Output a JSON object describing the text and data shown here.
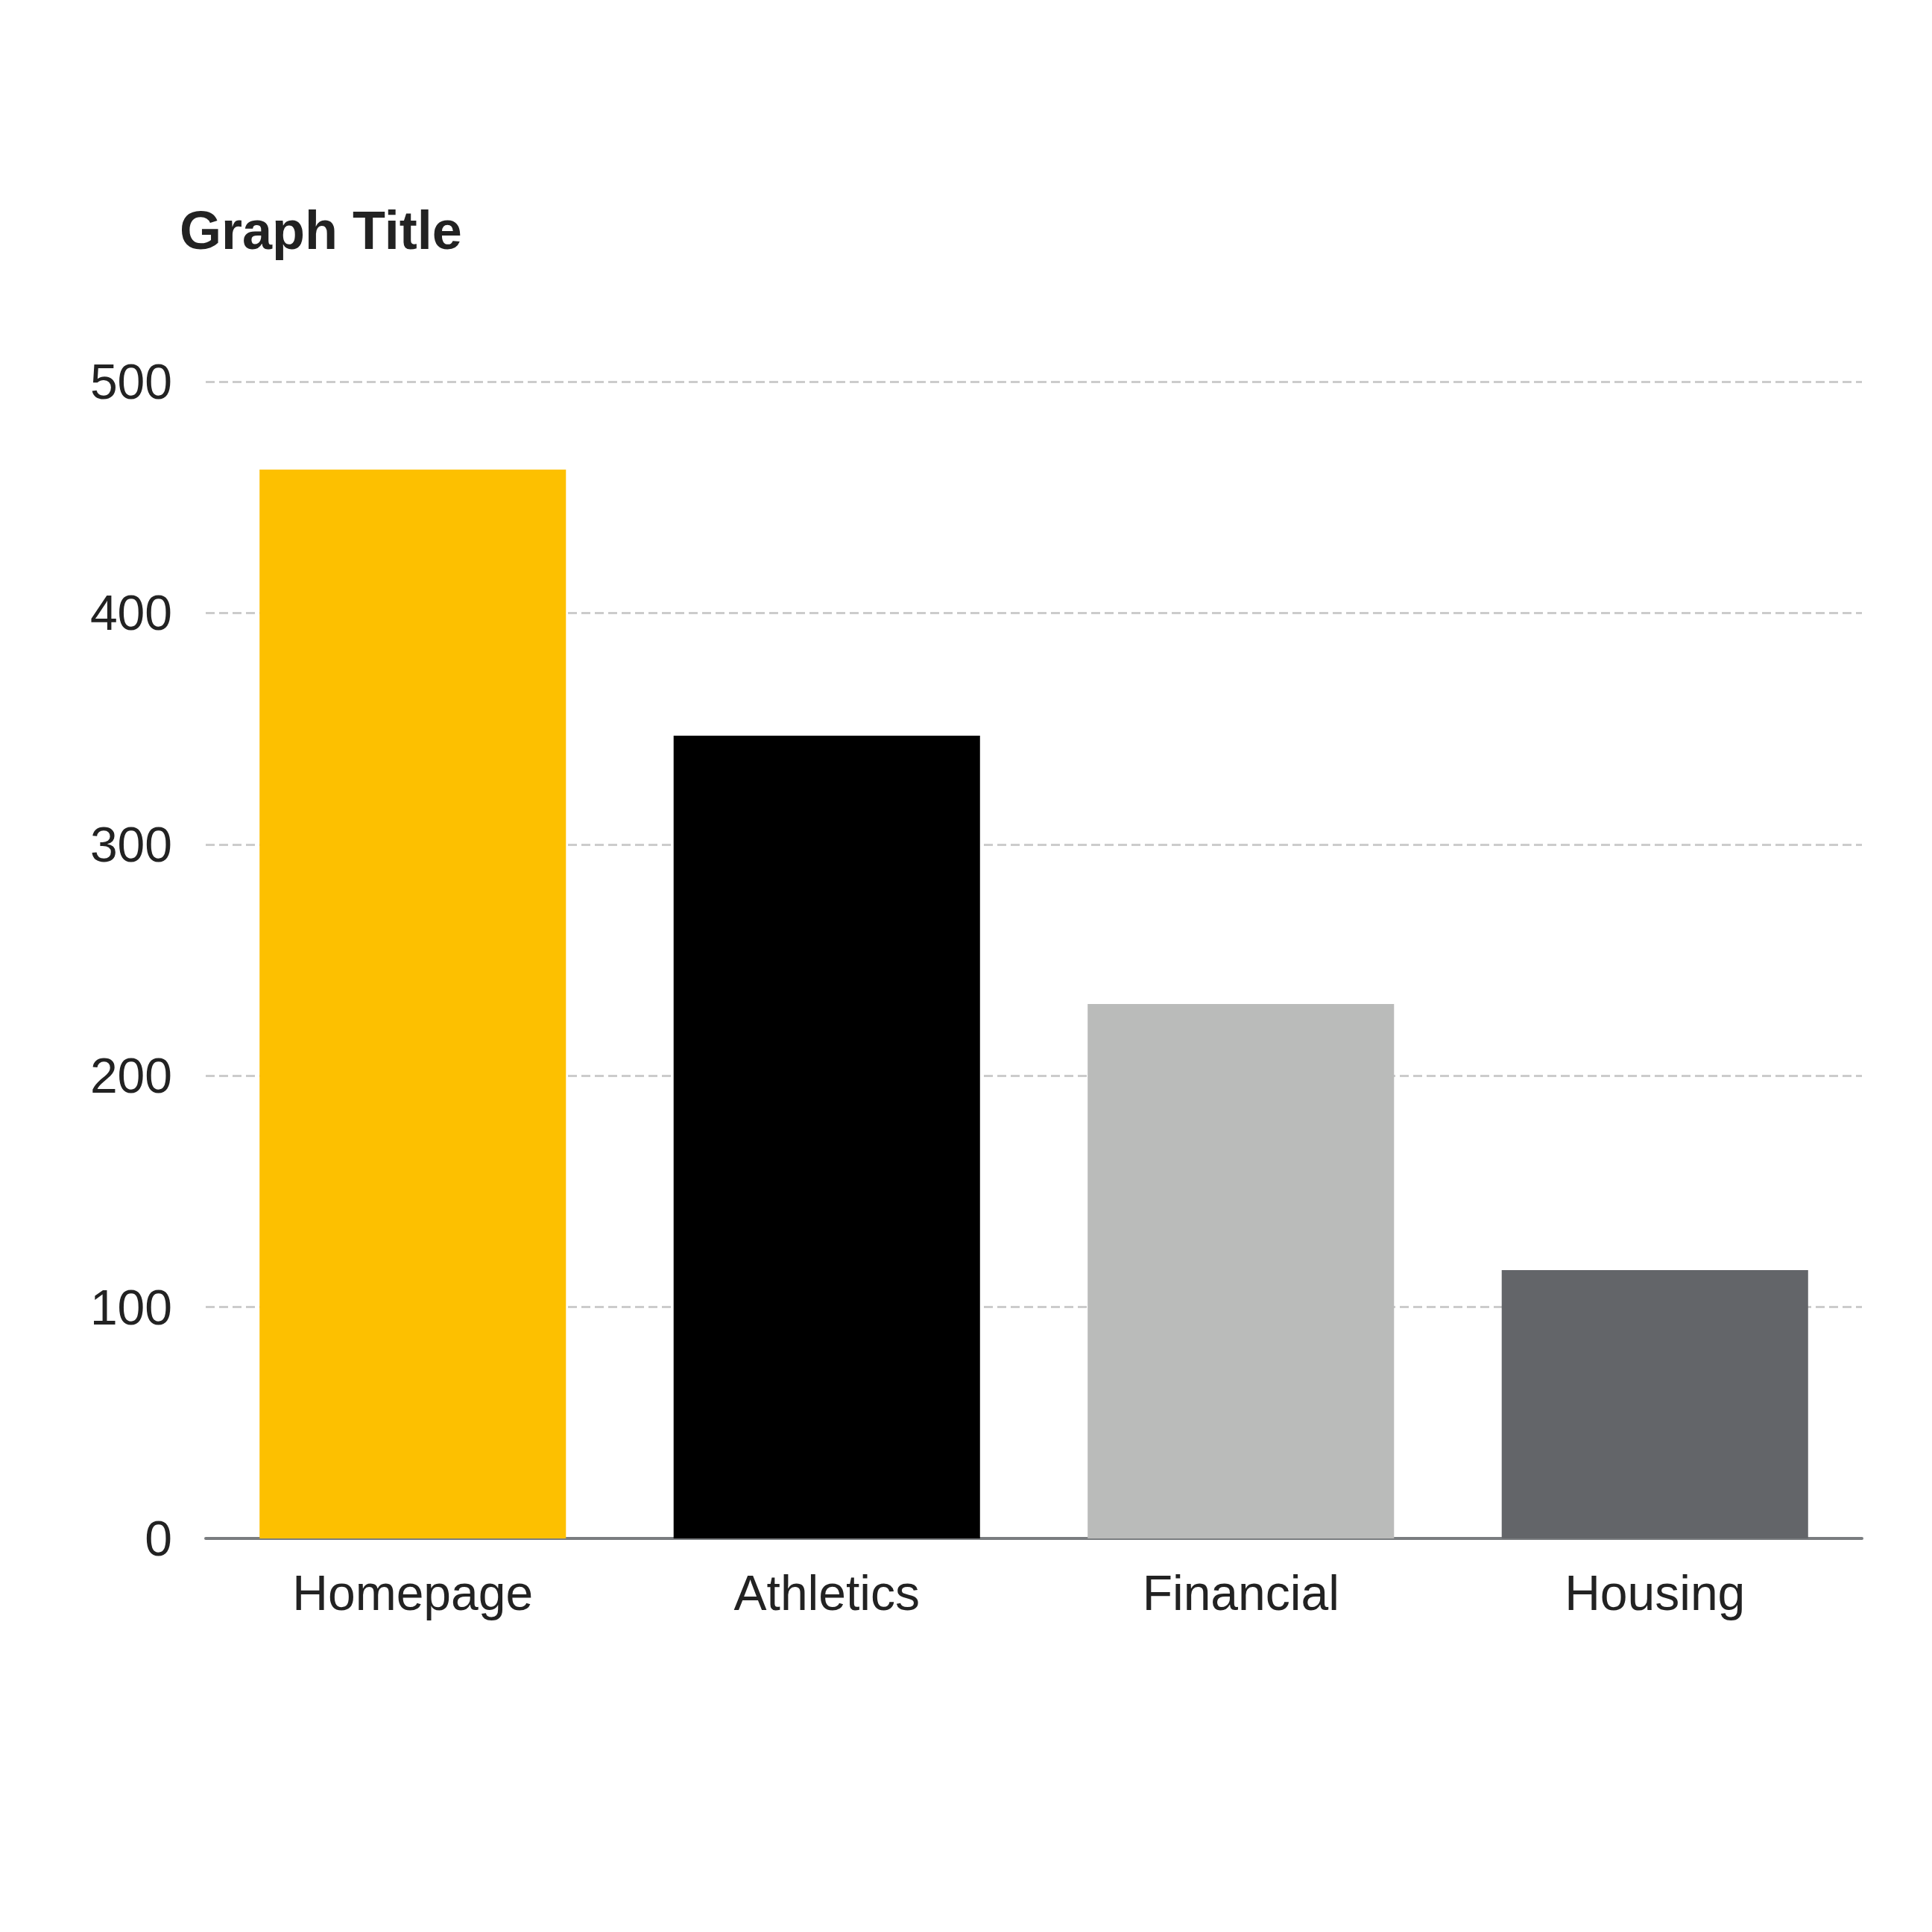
{
  "chart_data": {
    "type": "bar",
    "title": "Graph Title",
    "categories": [
      "Homepage",
      "Athletics",
      "Financial",
      "Housing"
    ],
    "values": [
      462,
      347,
      231,
      116
    ],
    "colors": [
      "#fdc000",
      "#000000",
      "#babbba",
      "#636569"
    ],
    "ylim": [
      0,
      500
    ],
    "yticks": [
      0,
      100,
      200,
      300,
      400,
      500
    ],
    "grid": "y"
  }
}
